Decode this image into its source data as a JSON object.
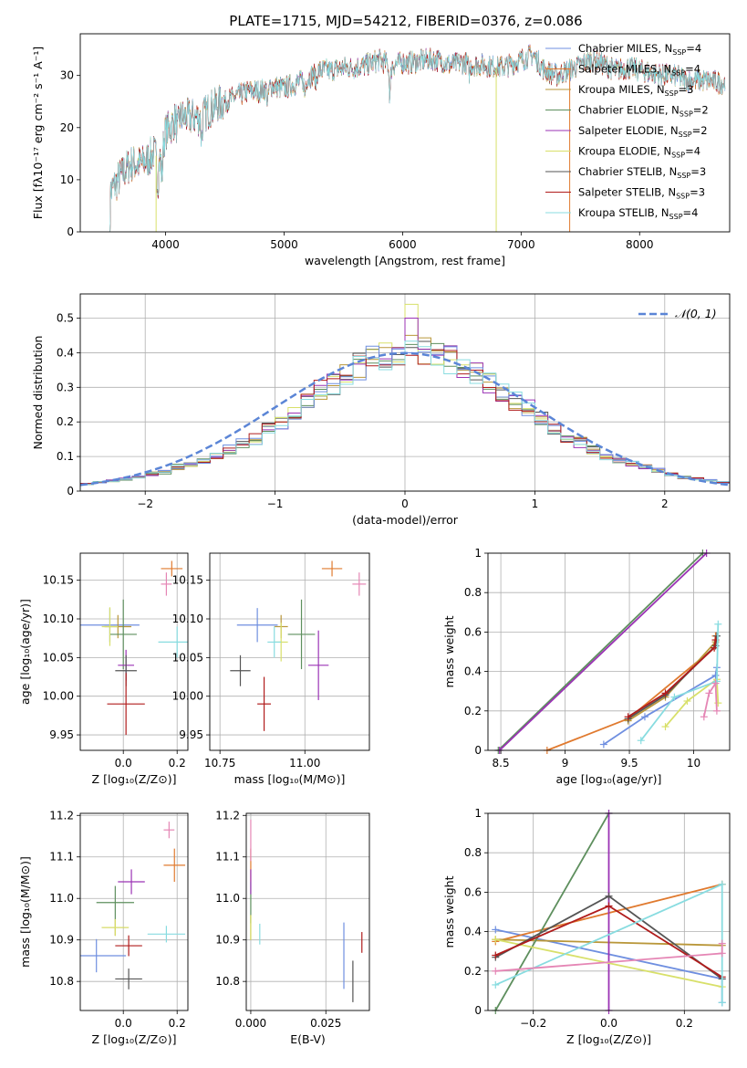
{
  "figure": {
    "title": "PLATE=1715, MJD=54212, FIBERID=0376, z=0.086"
  },
  "colors": {
    "spectra": [
      "#6f8fe0",
      "#e07a2f",
      "#b9973a",
      "#5e8f5e",
      "#9b33b5",
      "#d8e06a",
      "#555555",
      "#b01c1c",
      "#88dce0"
    ],
    "points": [
      "#6f8fe0",
      "#e07a2f",
      "#b9973a",
      "#5e8f5e",
      "#9b33b5",
      "#d8e06a",
      "#555555",
      "#b01c1c",
      "#88dce0",
      "#e586b5",
      "#f0a040"
    ],
    "gaussian": "#5b85d6"
  },
  "chart_data": [
    {
      "type": "line",
      "id": "spectrum",
      "xlabel": "wavelength [Angstrom, rest frame]",
      "ylabel": "Flux [fλ10⁻¹⁷ erg cm⁻² s⁻¹ A⁻¹]",
      "xlim": [
        3280,
        8760
      ],
      "ylim": [
        0,
        38
      ],
      "xticks": [
        4000,
        5000,
        6000,
        7000,
        8000
      ],
      "yticks": [
        0,
        10,
        20,
        30
      ],
      "grid": false,
      "legend_position": "upper-right",
      "series": [
        {
          "name": "Chabrier MILES, N_SSP=4"
        },
        {
          "name": "Salpeter MILES, N_SSP=4"
        },
        {
          "name": "Kroupa MILES, N_SSP=3"
        },
        {
          "name": "Chabrier ELODIE, N_SSP=2"
        },
        {
          "name": "Salpeter ELODIE, N_SSP=2"
        },
        {
          "name": "Kroupa ELODIE, N_SSP=4"
        },
        {
          "name": "Chabrier STELIB, N_SSP=3"
        },
        {
          "name": "Salpeter STELIB, N_SSP=3"
        },
        {
          "name": "Kroupa STELIB, N_SSP=4"
        }
      ],
      "continuum": {
        "x": [
          3520,
          3600,
          3700,
          3800,
          3900,
          3950,
          4000,
          4100,
          4200,
          4300,
          4400,
          4500,
          4600,
          4700,
          4800,
          4900,
          5000,
          5100,
          5200,
          5300,
          5400,
          5500,
          5600,
          5700,
          5800,
          5900,
          6000,
          6100,
          6200,
          6300,
          6400,
          6500,
          6600,
          6700,
          6800,
          6900,
          7000,
          7100,
          7200,
          7300,
          7400,
          7500,
          7600,
          7700,
          7800,
          7900,
          8000,
          8100,
          8200,
          8300,
          8400,
          8500,
          8600,
          8700
        ],
        "y": [
          7,
          10,
          13,
          13,
          15,
          14,
          19,
          22,
          22,
          22,
          24,
          25,
          26,
          27,
          27,
          28,
          27.5,
          28.5,
          29.5,
          31,
          31,
          31.5,
          31.5,
          32,
          33,
          32,
          32.5,
          32.5,
          33,
          33,
          32,
          32.5,
          32,
          32,
          31.5,
          32,
          33,
          34,
          31,
          30,
          31,
          32,
          33,
          32,
          31,
          31.5,
          31,
          30.5,
          30,
          30,
          29,
          29,
          29,
          28.5
        ]
      }
    },
    {
      "type": "bar",
      "id": "residuals",
      "xlabel": "(data-model)/error",
      "ylabel": "Normed distribution",
      "xlim": [
        -2.5,
        2.5
      ],
      "ylim": [
        0,
        0.57
      ],
      "xticks": [
        -2,
        -1,
        0,
        1,
        2
      ],
      "yticks": [
        0.0,
        0.1,
        0.2,
        0.3,
        0.4,
        0.5
      ],
      "grid": true,
      "legend": "𝒩(0, 1)",
      "legend_position": "upper-right",
      "bins": [
        -2.5,
        -2.4,
        -2.3,
        -2.2,
        -2.1,
        -2.0,
        -1.9,
        -1.8,
        -1.7,
        -1.6,
        -1.5,
        -1.4,
        -1.3,
        -1.2,
        -1.1,
        -1.0,
        -0.9,
        -0.8,
        -0.7,
        -0.6,
        -0.5,
        -0.4,
        -0.3,
        -0.2,
        -0.1,
        0.0,
        0.1,
        0.2,
        0.3,
        0.4,
        0.5,
        0.6,
        0.7,
        0.8,
        0.9,
        1.0,
        1.1,
        1.2,
        1.3,
        1.4,
        1.5,
        1.6,
        1.7,
        1.8,
        1.9,
        2.0,
        2.1,
        2.2,
        2.3,
        2.4,
        2.5
      ],
      "approx_values": [
        0.02,
        0.025,
        0.03,
        0.035,
        0.04,
        0.05,
        0.055,
        0.07,
        0.08,
        0.09,
        0.1,
        0.12,
        0.14,
        0.15,
        0.18,
        0.2,
        0.22,
        0.26,
        0.29,
        0.31,
        0.34,
        0.36,
        0.38,
        0.39,
        0.4,
        0.41,
        0.4,
        0.39,
        0.38,
        0.36,
        0.34,
        0.31,
        0.29,
        0.26,
        0.24,
        0.21,
        0.18,
        0.15,
        0.14,
        0.12,
        0.1,
        0.09,
        0.08,
        0.07,
        0.06,
        0.05,
        0.04,
        0.035,
        0.03,
        0.025
      ]
    },
    {
      "type": "scatter",
      "id": "age-vs-Z",
      "xlabel": "Z [log₁₀(Z/Z⊙)]",
      "ylabel": "age  [log₁₀(age/yr)]",
      "xlim": [
        -0.16,
        0.24
      ],
      "ylim": [
        9.93,
        10.185
      ],
      "xticks": [
        0.0,
        0.2
      ],
      "xticklabels": [
        "0.0",
        "0.2"
      ],
      "yticks": [
        9.95,
        10.0,
        10.05,
        10.1,
        10.15
      ],
      "yticklabels": [
        "9.95",
        "10.00",
        "10.05",
        "10.10",
        "10.15"
      ],
      "points": [
        {
          "x": -0.05,
          "y": 10.092,
          "xerr": 0.11,
          "yerr": 0.022,
          "c": 0
        },
        {
          "x": 0.18,
          "y": 10.165,
          "xerr": 0.04,
          "yerr": 0.01,
          "c": 1
        },
        {
          "x": -0.02,
          "y": 10.09,
          "xerr": 0.05,
          "yerr": 0.015,
          "c": 2
        },
        {
          "x": 0.0,
          "y": 10.08,
          "xerr": 0.05,
          "yerr": 0.045,
          "c": 3
        },
        {
          "x": 0.01,
          "y": 10.04,
          "xerr": 0.03,
          "yerr": 0.02,
          "c": 4
        },
        {
          "x": -0.05,
          "y": 10.09,
          "xerr": 0.03,
          "yerr": 0.025,
          "c": 5
        },
        {
          "x": 0.01,
          "y": 10.033,
          "xerr": 0.04,
          "yerr": 0.02,
          "c": 6
        },
        {
          "x": 0.01,
          "y": 9.99,
          "xerr": 0.07,
          "yerr": 0.04,
          "c": 7
        },
        {
          "x": 0.2,
          "y": 10.07,
          "xerr": 0.07,
          "yerr": 0.02,
          "c": 8
        },
        {
          "x": 0.16,
          "y": 10.145,
          "xerr": 0.02,
          "yerr": 0.015,
          "c": 9
        }
      ]
    },
    {
      "type": "scatter",
      "id": "age-vs-mass",
      "xlabel": "mass [log₁₀(M/M⊙)]",
      "ylabel": "",
      "xlim": [
        10.72,
        11.19
      ],
      "ylim": [
        9.93,
        10.185
      ],
      "xticks": [
        10.75,
        11.0
      ],
      "xticklabels": [
        "10.75",
        "11.00"
      ],
      "yticks": [
        9.95,
        10.0,
        10.05,
        10.1,
        10.15
      ],
      "yticklabels": [
        "9.95",
        "10.00",
        "10.05",
        "10.10",
        "10.15"
      ],
      "points": [
        {
          "x": 10.86,
          "y": 10.092,
          "xerr": 0.06,
          "yerr": 0.022,
          "c": 0
        },
        {
          "x": 11.08,
          "y": 10.165,
          "xerr": 0.03,
          "yerr": 0.01,
          "c": 1
        },
        {
          "x": 10.93,
          "y": 10.09,
          "xerr": 0.02,
          "yerr": 0.015,
          "c": 2
        },
        {
          "x": 10.99,
          "y": 10.08,
          "xerr": 0.04,
          "yerr": 0.045,
          "c": 3
        },
        {
          "x": 11.04,
          "y": 10.04,
          "xerr": 0.03,
          "yerr": 0.045,
          "c": 4
        },
        {
          "x": 10.93,
          "y": 10.07,
          "xerr": 0.02,
          "yerr": 0.025,
          "c": 5
        },
        {
          "x": 10.81,
          "y": 10.033,
          "xerr": 0.03,
          "yerr": 0.02,
          "c": 6
        },
        {
          "x": 10.88,
          "y": 9.99,
          "xerr": 0.02,
          "yerr": 0.035,
          "c": 7
        },
        {
          "x": 10.91,
          "y": 10.07,
          "xerr": 0.02,
          "yerr": 0.02,
          "c": 8
        },
        {
          "x": 11.16,
          "y": 10.145,
          "xerr": 0.02,
          "yerr": 0.015,
          "c": 9
        }
      ]
    },
    {
      "type": "line",
      "id": "mass-weight-vs-age",
      "xlabel": "age  [log₁₀(age/yr)]",
      "ylabel": "mass weight",
      "xlim": [
        8.4,
        10.28
      ],
      "ylim": [
        0.0,
        1.0
      ],
      "xticks": [
        8.5,
        9.0,
        9.5,
        10.0
      ],
      "yticks": [
        0.0,
        0.2,
        0.4,
        0.6,
        0.8,
        1.0
      ],
      "grid": true,
      "series": [
        {
          "c": 0,
          "x": [
            9.3,
            9.62,
            10.17,
            10.18
          ],
          "y": [
            0.03,
            0.17,
            0.38,
            0.42
          ]
        },
        {
          "c": 1,
          "x": [
            8.86,
            9.49,
            10.16,
            10.17
          ],
          "y": [
            0.0,
            0.16,
            0.52,
            0.58
          ]
        },
        {
          "c": 2,
          "x": [
            9.49,
            9.78,
            10.17
          ],
          "y": [
            0.15,
            0.27,
            0.55
          ]
        },
        {
          "c": 3,
          "x": [
            8.48,
            10.07
          ],
          "y": [
            0.0,
            1.0
          ]
        },
        {
          "c": 4,
          "x": [
            8.49,
            10.1
          ],
          "y": [
            0.0,
            1.0
          ]
        },
        {
          "c": 5,
          "x": [
            9.78,
            9.95,
            10.18,
            10.19
          ],
          "y": [
            0.12,
            0.25,
            0.36,
            0.24
          ]
        },
        {
          "c": 6,
          "x": [
            9.49,
            9.78,
            10.17,
            10.18
          ],
          "y": [
            0.16,
            0.28,
            0.53,
            0.58
          ]
        },
        {
          "c": 7,
          "x": [
            9.49,
            9.78,
            10.16,
            10.17
          ],
          "y": [
            0.17,
            0.29,
            0.52,
            0.56
          ]
        },
        {
          "c": 8,
          "x": [
            9.59,
            9.85,
            10.18,
            10.19
          ],
          "y": [
            0.05,
            0.27,
            0.35,
            0.64
          ]
        },
        {
          "c": 9,
          "x": [
            10.08,
            10.12,
            10.17,
            10.18
          ],
          "y": [
            0.17,
            0.29,
            0.34,
            0.2
          ]
        }
      ]
    },
    {
      "type": "scatter",
      "id": "mass-vs-Z",
      "xlabel": "Z [log₁₀(Z/Z⊙)]",
      "ylabel": "mass [log₁₀(M/M⊙)]",
      "xlim": [
        -0.16,
        0.24
      ],
      "ylim": [
        10.73,
        11.205
      ],
      "xticks": [
        0.0,
        0.2
      ],
      "xticklabels": [
        "0.0",
        "0.2"
      ],
      "yticks": [
        10.8,
        10.9,
        11.0,
        11.1,
        11.2
      ],
      "yticklabels": [
        "10.8",
        "10.9",
        "11.0",
        "11.1",
        "11.2"
      ],
      "points": [
        {
          "x": -0.1,
          "y": 10.862,
          "xerr": 0.11,
          "yerr": 0.04,
          "c": 0
        },
        {
          "x": 0.19,
          "y": 11.08,
          "xerr": 0.04,
          "yerr": 0.04,
          "c": 1
        },
        {
          "x": -0.03,
          "y": 10.93,
          "xerr": 0.05,
          "yerr": 0.02,
          "c": 2
        },
        {
          "x": -0.03,
          "y": 10.99,
          "xerr": 0.07,
          "yerr": 0.04,
          "c": 3
        },
        {
          "x": 0.03,
          "y": 11.04,
          "xerr": 0.05,
          "yerr": 0.03,
          "c": 4
        },
        {
          "x": -0.03,
          "y": 10.93,
          "xerr": 0.05,
          "yerr": 0.02,
          "c": 5
        },
        {
          "x": 0.02,
          "y": 10.806,
          "xerr": 0.05,
          "yerr": 0.025,
          "c": 6
        },
        {
          "x": 0.02,
          "y": 10.886,
          "xerr": 0.05,
          "yerr": 0.025,
          "c": 7
        },
        {
          "x": 0.16,
          "y": 10.914,
          "xerr": 0.07,
          "yerr": 0.02,
          "c": 8
        },
        {
          "x": 0.17,
          "y": 11.165,
          "xerr": 0.02,
          "yerr": 0.02,
          "c": 9
        }
      ]
    },
    {
      "type": "scatter",
      "id": "mass-vs-EBV",
      "xlabel": "E(B-V)",
      "ylabel": "",
      "xlim": [
        -0.0015,
        0.0395
      ],
      "ylim": [
        10.73,
        11.205
      ],
      "xticks": [
        0.0,
        0.025
      ],
      "xticklabels": [
        "0.000",
        "0.025"
      ],
      "yticks": [
        10.8,
        10.9,
        11.0,
        11.1,
        11.2
      ],
      "yticklabels": [
        "10.8",
        "10.9",
        "11.0",
        "11.1",
        "11.2"
      ],
      "points": [
        {
          "x": 0.031,
          "y": 10.862,
          "xerr": 0.0,
          "yerr": 0.08,
          "c": 0
        },
        {
          "x": 0.0,
          "y": 11.08,
          "xerr": 0.0,
          "yerr": 0.04,
          "c": 1
        },
        {
          "x": 0.0,
          "y": 10.93,
          "xerr": 0.0,
          "yerr": 0.03,
          "c": 2
        },
        {
          "x": 0.0,
          "y": 10.99,
          "xerr": 0.0,
          "yerr": 0.05,
          "c": 3
        },
        {
          "x": 0.0,
          "y": 11.04,
          "xerr": 0.0,
          "yerr": 0.03,
          "c": 4
        },
        {
          "x": 0.0,
          "y": 10.93,
          "xerr": 0.0,
          "yerr": 0.03,
          "c": 5
        },
        {
          "x": 0.034,
          "y": 10.8,
          "xerr": 0.0,
          "yerr": 0.05,
          "c": 6
        },
        {
          "x": 0.037,
          "y": 10.894,
          "xerr": 0.0,
          "yerr": 0.025,
          "c": 7
        },
        {
          "x": 0.003,
          "y": 10.914,
          "xerr": 0.0,
          "yerr": 0.025,
          "c": 8
        },
        {
          "x": 0.0,
          "y": 11.14,
          "xerr": 0.0,
          "yerr": 0.05,
          "c": 9
        }
      ]
    },
    {
      "type": "line",
      "id": "mass-weight-vs-Z",
      "xlabel": "Z [log₁₀(Z/Z⊙)]",
      "ylabel": "mass weight",
      "xlim": [
        -0.32,
        0.32
      ],
      "ylim": [
        0.0,
        1.0
      ],
      "xticks": [
        -0.2,
        0.0,
        0.2
      ],
      "xticklabels": [
        "−0.2",
        "0.0",
        "0.2"
      ],
      "yticks": [
        0.0,
        0.2,
        0.4,
        0.6,
        0.8,
        1.0
      ],
      "grid": true,
      "series": [
        {
          "c": 0,
          "x": [
            -0.3,
            0.3,
            0.3
          ],
          "y": [
            0.41,
            0.16,
            0.04
          ]
        },
        {
          "c": 1,
          "x": [
            -0.3,
            0.3
          ],
          "y": [
            0.35,
            0.64
          ]
        },
        {
          "c": 2,
          "x": [
            -0.3,
            0.3
          ],
          "y": [
            0.36,
            0.33
          ]
        },
        {
          "c": 3,
          "x": [
            -0.3,
            0.0
          ],
          "y": [
            0.0,
            1.0
          ]
        },
        {
          "c": 4,
          "x": [
            0.0,
            0.0
          ],
          "y": [
            0.0,
            1.0
          ]
        },
        {
          "c": 5,
          "x": [
            -0.3,
            0.3
          ],
          "y": [
            0.36,
            0.12
          ]
        },
        {
          "c": 6,
          "x": [
            -0.3,
            0.0,
            0.3
          ],
          "y": [
            0.27,
            0.58,
            0.16
          ]
        },
        {
          "c": 7,
          "x": [
            -0.3,
            0.0,
            0.3
          ],
          "y": [
            0.28,
            0.53,
            0.17
          ]
        },
        {
          "c": 8,
          "x": [
            -0.3,
            0.3,
            0.3
          ],
          "y": [
            0.13,
            0.64,
            0.04
          ]
        },
        {
          "c": 9,
          "x": [
            -0.3,
            0.3,
            0.3
          ],
          "y": [
            0.2,
            0.29,
            0.34
          ]
        }
      ]
    }
  ]
}
